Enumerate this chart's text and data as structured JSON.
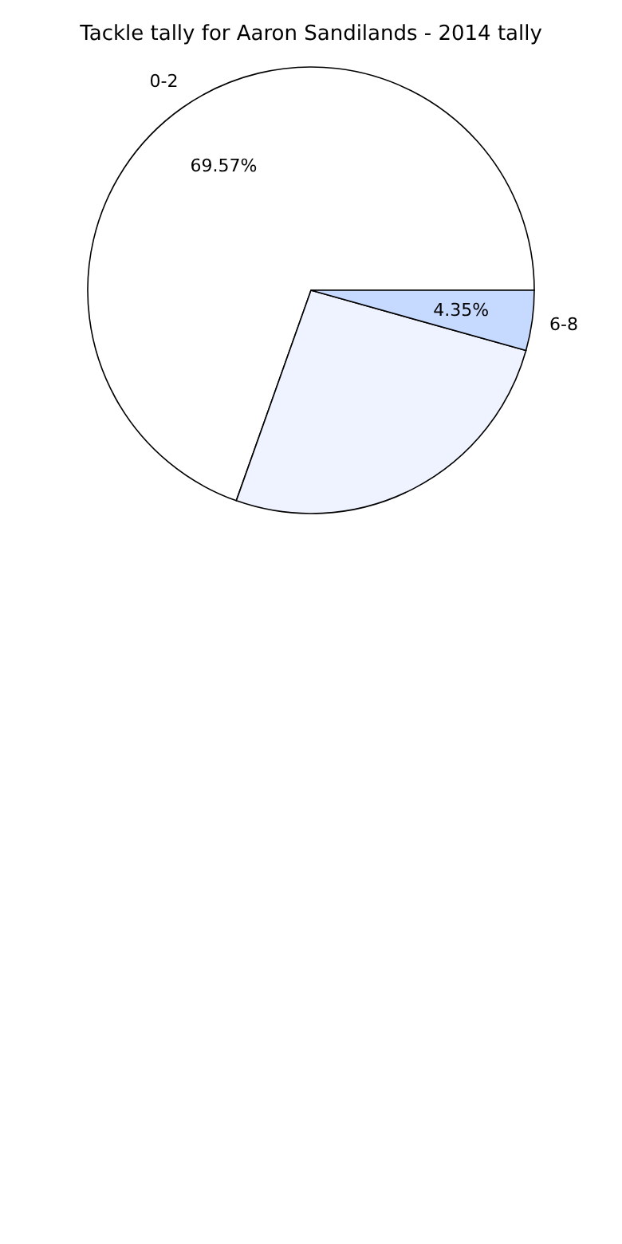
{
  "chart_data": {
    "type": "pie",
    "title": "Tackle tally for Aaron Sandilands - 2014 tally",
    "categories": [
      "0-2",
      null,
      "6-8"
    ],
    "values": [
      69.57,
      26.08,
      4.35
    ],
    "colors": [
      "#ffffff",
      "#eef3ff",
      "#c6d9ff"
    ],
    "value_labels": [
      "69.57%",
      null,
      "4.35%"
    ],
    "legend": false
  }
}
